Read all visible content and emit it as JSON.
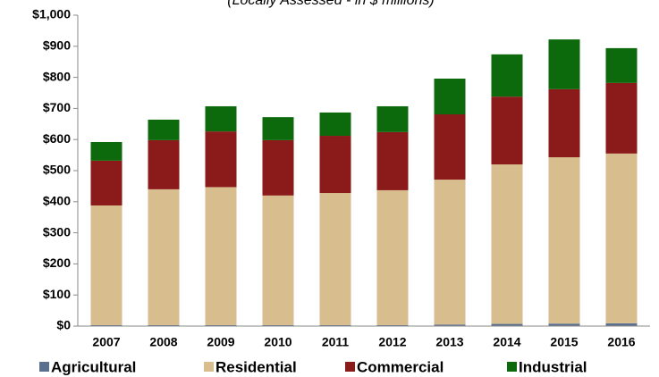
{
  "chart_data": {
    "type": "stacked_bar",
    "subtitle": "(Locally Assessed - in $ millions)",
    "categories": [
      "2007",
      "2008",
      "2009",
      "2010",
      "2011",
      "2012",
      "2013",
      "2014",
      "2015",
      "2016"
    ],
    "series": [
      {
        "name": "Agricultural",
        "color": "#5b6f8f",
        "values": [
          3,
          3,
          3,
          3,
          3,
          3,
          5,
          7,
          8,
          9
        ]
      },
      {
        "name": "Residential",
        "color": "#d8be8e",
        "values": [
          385,
          437,
          444,
          417,
          425,
          434,
          466,
          513,
          535,
          546
        ]
      },
      {
        "name": "Commercial",
        "color": "#8b1a1a",
        "values": [
          144,
          158,
          179,
          178,
          184,
          187,
          210,
          218,
          219,
          227
        ]
      },
      {
        "name": "Industrial",
        "color": "#0c6a0c",
        "values": [
          60,
          66,
          81,
          74,
          75,
          83,
          115,
          136,
          160,
          112
        ]
      }
    ],
    "ylim": [
      0,
      1000
    ],
    "yticks": [
      {
        "value": 0,
        "label": "$0"
      },
      {
        "value": 100,
        "label": "$100"
      },
      {
        "value": 200,
        "label": "$200"
      },
      {
        "value": 300,
        "label": "$300"
      },
      {
        "value": 400,
        "label": "$400"
      },
      {
        "value": 500,
        "label": "$500"
      },
      {
        "value": 600,
        "label": "$600"
      },
      {
        "value": 700,
        "label": "$700"
      },
      {
        "value": 800,
        "label": "$800"
      },
      {
        "value": 900,
        "label": "$900"
      },
      {
        "value": 1000,
        "label": "$1,000"
      }
    ]
  }
}
